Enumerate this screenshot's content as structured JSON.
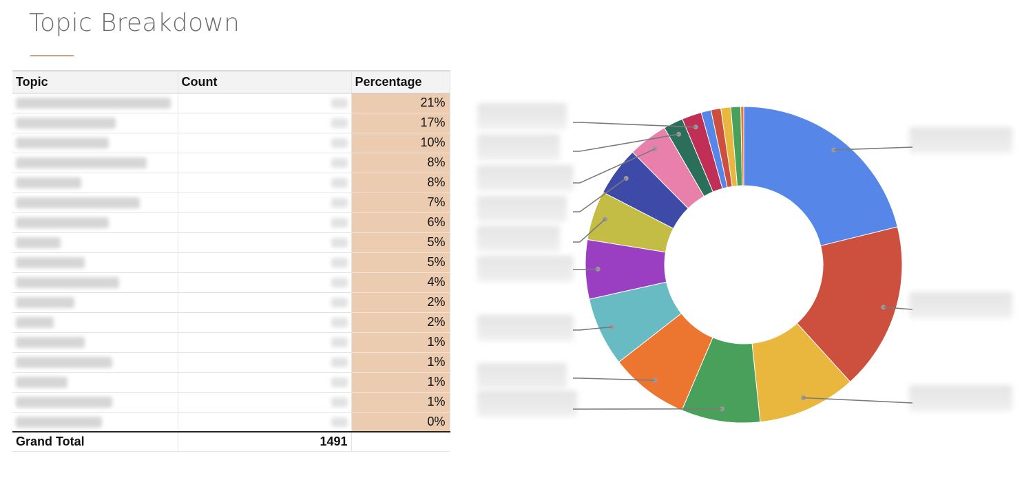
{
  "page": {
    "title": "Topic Breakdown"
  },
  "table": {
    "headers": [
      "Topic",
      "Count",
      "Percentage"
    ],
    "rows": [
      {
        "percentage": "21%"
      },
      {
        "percentage": "17%"
      },
      {
        "percentage": "10%"
      },
      {
        "percentage": "8%"
      },
      {
        "percentage": "8%"
      },
      {
        "percentage": "7%"
      },
      {
        "percentage": "6%"
      },
      {
        "percentage": "5%"
      },
      {
        "percentage": "5%"
      },
      {
        "percentage": "4%"
      },
      {
        "percentage": "2%"
      },
      {
        "percentage": "2%"
      },
      {
        "percentage": "1%"
      },
      {
        "percentage": "1%"
      },
      {
        "percentage": "1%"
      },
      {
        "percentage": "1%"
      },
      {
        "percentage": "0%"
      }
    ],
    "total_label": "Grand Total",
    "total_count": "1491"
  },
  "chart_data": {
    "type": "pie",
    "donut": true,
    "title": "",
    "values": [
      21,
      17,
      10,
      8,
      8,
      7,
      6,
      5,
      5,
      4,
      2,
      2,
      1,
      1,
      1,
      1,
      0.3
    ],
    "colors": [
      "#5586e8",
      "#cd4f3d",
      "#e9b73d",
      "#48a05a",
      "#ec7530",
      "#68bac3",
      "#9b3fc2",
      "#c3bd46",
      "#3d4aa8",
      "#e97fab",
      "#2b6e59",
      "#c02f55",
      "#5586e8",
      "#cd4f3d",
      "#e9b73d",
      "#48a05a",
      "#ec7530"
    ],
    "legend_position": "both-sides",
    "labels_blurred": true
  }
}
